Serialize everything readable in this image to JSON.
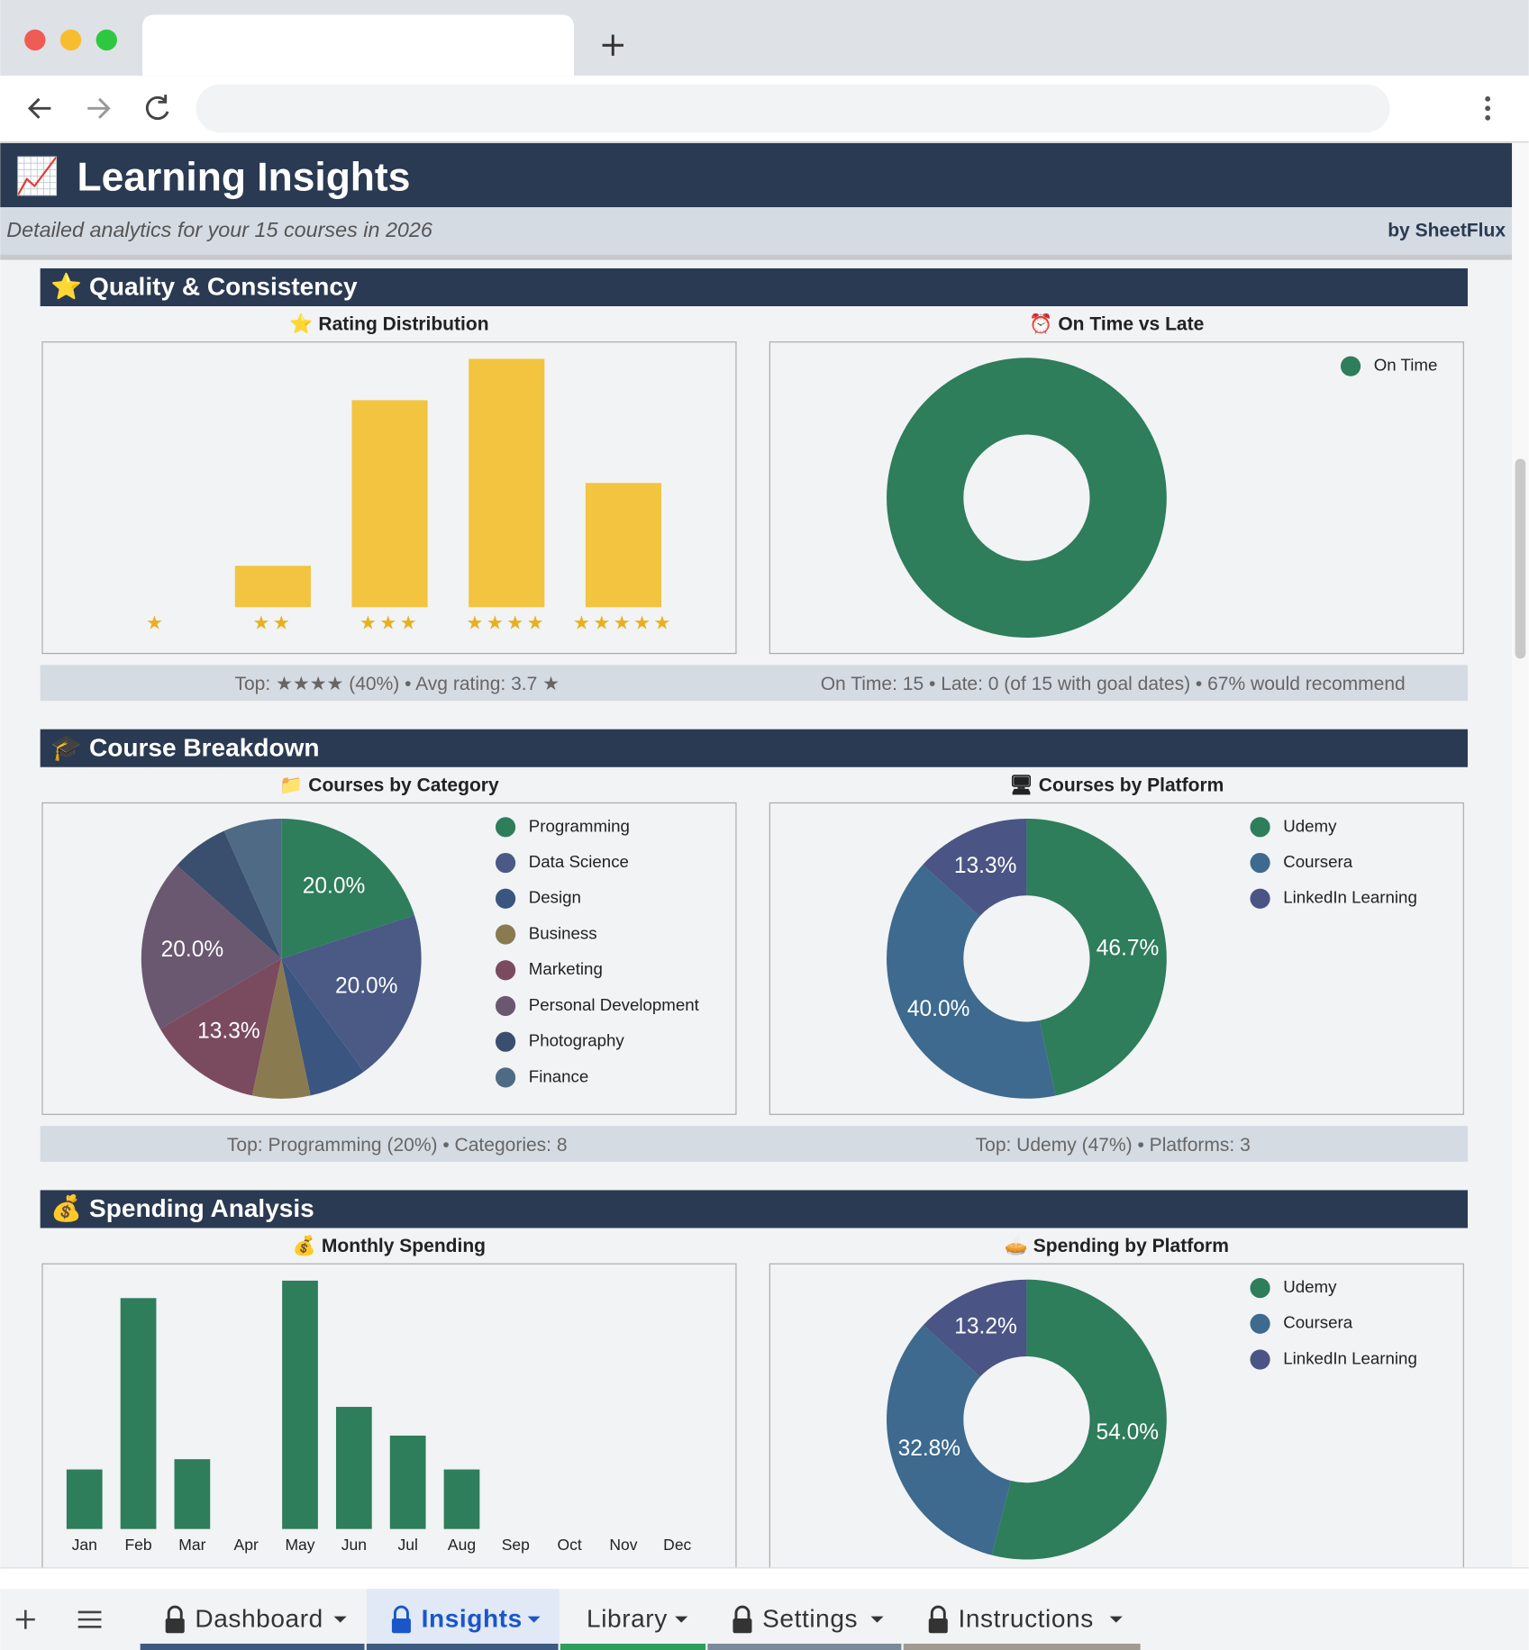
{
  "header": {
    "title": "Learning Insights",
    "subtitle": "Detailed analytics for your 15 courses in 2026",
    "brand": "by SheetFlux"
  },
  "sections": [
    {
      "title": "⭐ Quality & Consistency",
      "charts": [
        {
          "type": "bar",
          "title": "⭐ Rating Distribution",
          "categories": [
            "★",
            "★★",
            "★★★",
            "★★★★",
            "★★★★★"
          ],
          "values": [
            0,
            1,
            5,
            6,
            3
          ],
          "color": "#f2c440"
        },
        {
          "type": "pie",
          "donut": true,
          "title": "⏰ On Time vs Late",
          "categories": [
            "On Time"
          ],
          "values": [
            15
          ],
          "colors": [
            "#2e7d5b"
          ],
          "legend": "top-right"
        }
      ],
      "stats": [
        "Top: ★★★★ (40%) • Avg rating: 3.7 ★",
        "On Time: 15 • Late: 0 (of 15 with goal dates) • 67% would recommend"
      ]
    },
    {
      "title": "🎓 Course Breakdown",
      "charts": [
        {
          "type": "pie",
          "donut": false,
          "title": "📁 Courses by Category",
          "categories": [
            "Programming",
            "Data Science",
            "Design",
            "Business",
            "Marketing",
            "Personal Development",
            "Photography",
            "Finance"
          ],
          "values": [
            20,
            20,
            6.7,
            6.7,
            13.3,
            20,
            6.7,
            6.7
          ],
          "value_labels": [
            "20.0%",
            "20.0%",
            null,
            null,
            "13.3%",
            "20.0%",
            null,
            null
          ],
          "colors": [
            "#2e7d5b",
            "#4a5a85",
            "#3a5580",
            "#8a7a50",
            "#7a4a5e",
            "#6a5870",
            "#3a4f6e",
            "#4f6a85"
          ],
          "legend": "top-right"
        },
        {
          "type": "pie",
          "donut": true,
          "title": "🖥 Courses by Platform",
          "categories": [
            "Udemy",
            "Coursera",
            "LinkedIn Learning"
          ],
          "values": [
            46.7,
            40.0,
            13.3
          ],
          "value_labels": [
            "46.7%",
            "40.0%",
            "13.3%"
          ],
          "colors": [
            "#2e7d5b",
            "#3d6a8e",
            "#4a5585"
          ],
          "legend": "top-right"
        }
      ],
      "stats": [
        "Top: Programming (20%) • Categories: 8",
        "Top: Udemy (47%) • Platforms: 3"
      ]
    },
    {
      "title": "💰 Spending Analysis",
      "charts": [
        {
          "type": "bar",
          "title": "💰 Monthly Spending",
          "categories": [
            "Jan",
            "Feb",
            "Mar",
            "Apr",
            "May",
            "Jun",
            "Jul",
            "Aug",
            "Sep",
            "Oct",
            "Nov",
            "Dec"
          ],
          "values": [
            58,
            225,
            68,
            0,
            242,
            119,
            91,
            58,
            0,
            0,
            0,
            0
          ],
          "color": "#2e7d5b"
        },
        {
          "type": "pie",
          "donut": true,
          "title": "🥧 Spending by Platform",
          "categories": [
            "Udemy",
            "Coursera",
            "LinkedIn Learning"
          ],
          "values": [
            54.0,
            32.8,
            13.2
          ],
          "value_labels": [
            "54.0%",
            "32.8%",
            "13.2%"
          ],
          "colors": [
            "#2e7d5b",
            "#3d6a8e",
            "#4a5585"
          ],
          "legend": "top-right"
        }
      ],
      "stats": []
    }
  ],
  "tabs": [
    {
      "label": "Dashboard",
      "locked": true,
      "active": false,
      "color": "#3d5a80"
    },
    {
      "label": "Insights",
      "locked": true,
      "active": true,
      "color": "#3d5a80"
    },
    {
      "label": "Library",
      "locked": false,
      "active": false,
      "color": "#2e9e5b"
    },
    {
      "label": "Settings",
      "locked": true,
      "active": false,
      "color": "#7a8a9a"
    },
    {
      "label": "Instructions",
      "locked": true,
      "active": false,
      "color": "#a09a90"
    }
  ]
}
